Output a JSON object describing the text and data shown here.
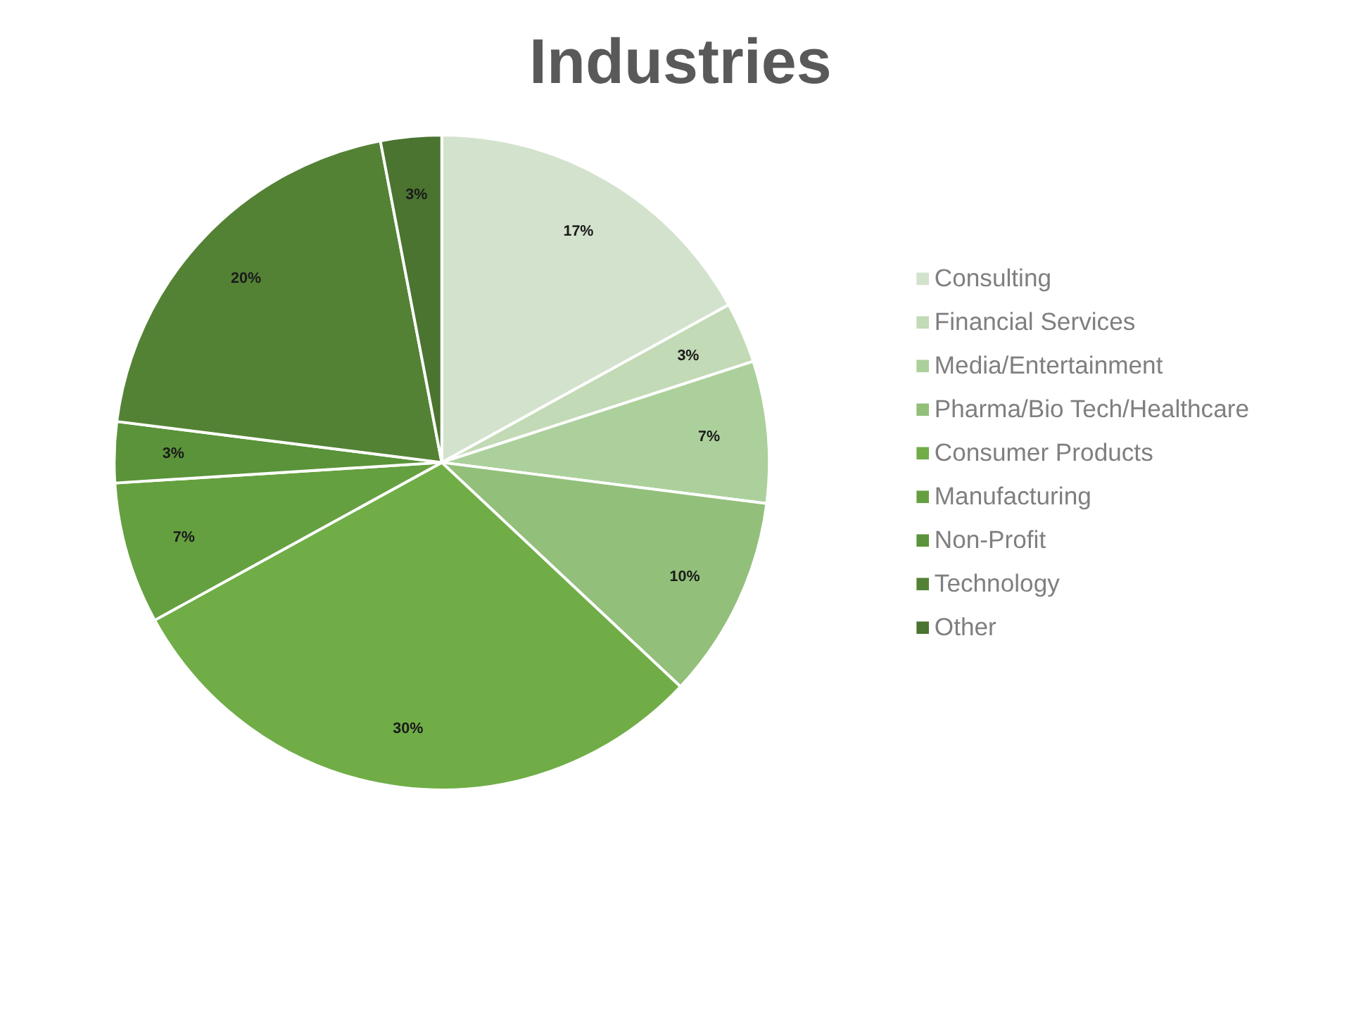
{
  "chart_data": {
    "type": "pie",
    "title": "Industries",
    "categories": [
      "Consulting",
      "Financial Services",
      "Media/Entertainment",
      "Pharma/Bio Tech/Healthcare",
      "Consumer Products",
      "Manufacturing",
      "Non-Profit",
      "Technology",
      "Other"
    ],
    "values": [
      17,
      3,
      7,
      10,
      30,
      7,
      3,
      20,
      3
    ],
    "colors": [
      "#d3e2cc",
      "#c2dab5",
      "#acd09b",
      "#92bf7a",
      "#70ad47",
      "#65a040",
      "#5a9339",
      "#548235",
      "#4a7430"
    ],
    "value_labels": [
      "17%",
      "3%",
      "7%",
      "10%",
      "30%",
      "7%",
      "3%",
      "20%",
      "3%"
    ],
    "legend": "right"
  }
}
